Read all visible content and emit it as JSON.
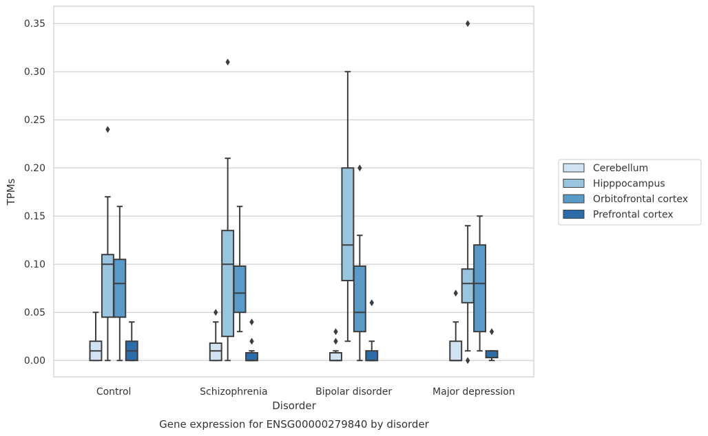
{
  "chart_data": {
    "type": "box",
    "title": "",
    "caption": "Gene expression for ENSG00000279840 by disorder",
    "xlabel": "Disorder",
    "ylabel": "TPMs",
    "ylim": [
      -0.017,
      0.368
    ],
    "yticks": [
      0.0,
      0.05,
      0.1,
      0.15,
      0.2,
      0.25,
      0.3,
      0.35
    ],
    "ytick_labels": [
      "0.00",
      "0.05",
      "0.10",
      "0.15",
      "0.20",
      "0.25",
      "0.30",
      "0.35"
    ],
    "grid": "horizontal",
    "legend_position": "right",
    "categories": [
      "Control",
      "Schizophrenia",
      "Bipolar disorder",
      "Major depression"
    ],
    "series": [
      {
        "name": "Cerebellum",
        "color": "#d1e2f2",
        "boxes": [
          {
            "whislo": 0.0,
            "q1": 0.0,
            "med": 0.01,
            "q3": 0.02,
            "whishi": 0.05,
            "fliers": []
          },
          {
            "whislo": 0.0,
            "q1": 0.0,
            "med": 0.01,
            "q3": 0.018,
            "whishi": 0.04,
            "fliers": [
              0.05
            ]
          },
          {
            "whislo": 0.0,
            "q1": 0.0,
            "med": 0.0,
            "q3": 0.008,
            "whishi": 0.01,
            "fliers": [
              0.02,
              0.03
            ]
          },
          {
            "whislo": 0.0,
            "q1": 0.0,
            "med": 0.0,
            "q3": 0.02,
            "whishi": 0.04,
            "fliers": [
              0.07
            ]
          }
        ]
      },
      {
        "name": "Hipppocampus",
        "color": "#9ac5df",
        "boxes": [
          {
            "whislo": 0.0,
            "q1": 0.045,
            "med": 0.1,
            "q3": 0.11,
            "whishi": 0.17,
            "fliers": [
              0.24
            ]
          },
          {
            "whislo": 0.0,
            "q1": 0.025,
            "med": 0.1,
            "q3": 0.135,
            "whishi": 0.21,
            "fliers": [
              0.31
            ]
          },
          {
            "whislo": 0.02,
            "q1": 0.083,
            "med": 0.12,
            "q3": 0.2,
            "whishi": 0.3,
            "fliers": []
          },
          {
            "whislo": 0.01,
            "q1": 0.06,
            "med": 0.08,
            "q3": 0.095,
            "whishi": 0.14,
            "fliers": [
              0.0,
              0.35
            ]
          }
        ]
      },
      {
        "name": "Orbitofrontal cortex",
        "color": "#5a9ac8",
        "boxes": [
          {
            "whislo": 0.0,
            "q1": 0.045,
            "med": 0.08,
            "q3": 0.105,
            "whishi": 0.16,
            "fliers": []
          },
          {
            "whislo": 0.03,
            "q1": 0.05,
            "med": 0.07,
            "q3": 0.098,
            "whishi": 0.16,
            "fliers": []
          },
          {
            "whislo": 0.0,
            "q1": 0.03,
            "med": 0.05,
            "q3": 0.098,
            "whishi": 0.13,
            "fliers": [
              0.2
            ]
          },
          {
            "whislo": 0.01,
            "q1": 0.03,
            "med": 0.08,
            "q3": 0.12,
            "whishi": 0.15,
            "fliers": []
          }
        ]
      },
      {
        "name": "Prefrontal cortex",
        "color": "#2c6ca8",
        "boxes": [
          {
            "whislo": 0.0,
            "q1": 0.0,
            "med": 0.01,
            "q3": 0.02,
            "whishi": 0.04,
            "fliers": []
          },
          {
            "whislo": 0.0,
            "q1": 0.0,
            "med": 0.0,
            "q3": 0.008,
            "whishi": 0.01,
            "fliers": [
              0.02,
              0.04
            ]
          },
          {
            "whislo": 0.0,
            "q1": 0.0,
            "med": 0.0,
            "q3": 0.01,
            "whishi": 0.02,
            "fliers": [
              0.06
            ]
          },
          {
            "whislo": 0.0,
            "q1": 0.003,
            "med": 0.003,
            "q3": 0.01,
            "whishi": 0.01,
            "fliers": [
              0.03
            ]
          }
        ]
      }
    ]
  }
}
